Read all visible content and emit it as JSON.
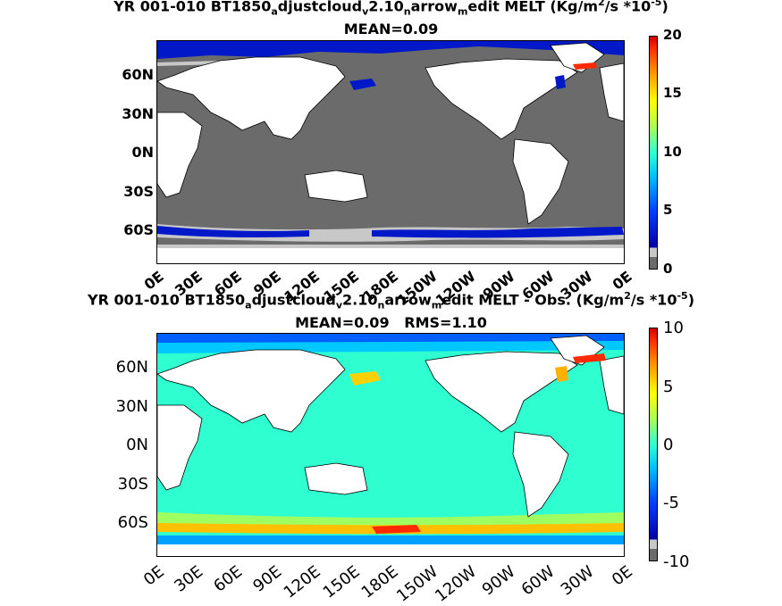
{
  "panels": [
    {
      "title_parts": [
        "YR 001-010 BT1850",
        "a",
        "djustcloud",
        "v",
        "2.10",
        "n",
        "arrow",
        "m",
        "edit MELT (Kg/m",
        "2",
        "/s ",
        "*10",
        "-5",
        ")"
      ],
      "subtitle": "MEAN=0.09",
      "y_ticks": [
        "60N",
        "30N",
        "0N",
        "30S",
        "60S"
      ],
      "x_ticks": [
        "0E",
        "30E",
        "60E",
        "90E",
        "120E",
        "150E",
        "180E",
        "150W",
        "120W",
        "90W",
        "60W",
        "30W",
        "0E"
      ],
      "colorbar_ticks": [
        "20",
        "15",
        "10",
        "5",
        "0"
      ]
    },
    {
      "title_parts": [
        "YR 001-010 BT1850",
        "a",
        "djustcloud",
        "v",
        "2.10",
        "n",
        "arrow",
        "m",
        "edit MELT - Obs. (Kg/m",
        "2",
        "/s *10",
        "-5",
        ")"
      ],
      "subtitle": "MEAN=0.09   RMS=1.10",
      "y_ticks": [
        "60N",
        "30N",
        "0N",
        "30S",
        "60S"
      ],
      "x_ticks": [
        "0E",
        "30E",
        "60E",
        "90E",
        "120E",
        "150E",
        "180E",
        "150W",
        "120W",
        "90W",
        "60W",
        "30W",
        "0E"
      ],
      "colorbar_ticks": [
        "10",
        "5",
        "0",
        "-5",
        "-10"
      ]
    }
  ],
  "colors": {
    "ocean_zero": "#6b6b6b",
    "land": "#ffffff",
    "diff_zero": "#2fffd0",
    "band_blue": "#0018c8",
    "band_light": "#c8c8c8",
    "hot": "#ff2a00"
  },
  "chart_data": [
    {
      "type": "heatmap",
      "title": "YR 001-010 BT1850adjustcloudv2.10narrowmedit MELT (Kg/m2/s *10-5)",
      "subtitle": "MEAN=0.09",
      "x_ticks": [
        "0E",
        "30E",
        "60E",
        "90E",
        "120E",
        "150E",
        "180E",
        "150W",
        "120W",
        "90W",
        "60W",
        "30W",
        "0E"
      ],
      "y_ticks": [
        "60N",
        "30N",
        "0N",
        "30S",
        "60S"
      ],
      "colorbar_range": [
        0,
        20
      ],
      "colorbar_ticks": [
        0,
        5,
        10,
        15,
        20
      ],
      "mean": 0.09
    },
    {
      "type": "heatmap",
      "title": "YR 001-010 BT1850adjustcloudv2.10narrowmedit MELT - Obs. (Kg/m2/s *10-5)",
      "subtitle": "MEAN=0.09   RMS=1.10",
      "x_ticks": [
        "0E",
        "30E",
        "60E",
        "90E",
        "120E",
        "150E",
        "180E",
        "150W",
        "120W",
        "90W",
        "60W",
        "30W",
        "0E"
      ],
      "y_ticks": [
        "60N",
        "30N",
        "0N",
        "30S",
        "60S"
      ],
      "colorbar_range": [
        -10,
        10
      ],
      "colorbar_ticks": [
        -10,
        -5,
        0,
        5,
        10
      ],
      "mean": 0.09,
      "rms": 1.1
    }
  ]
}
